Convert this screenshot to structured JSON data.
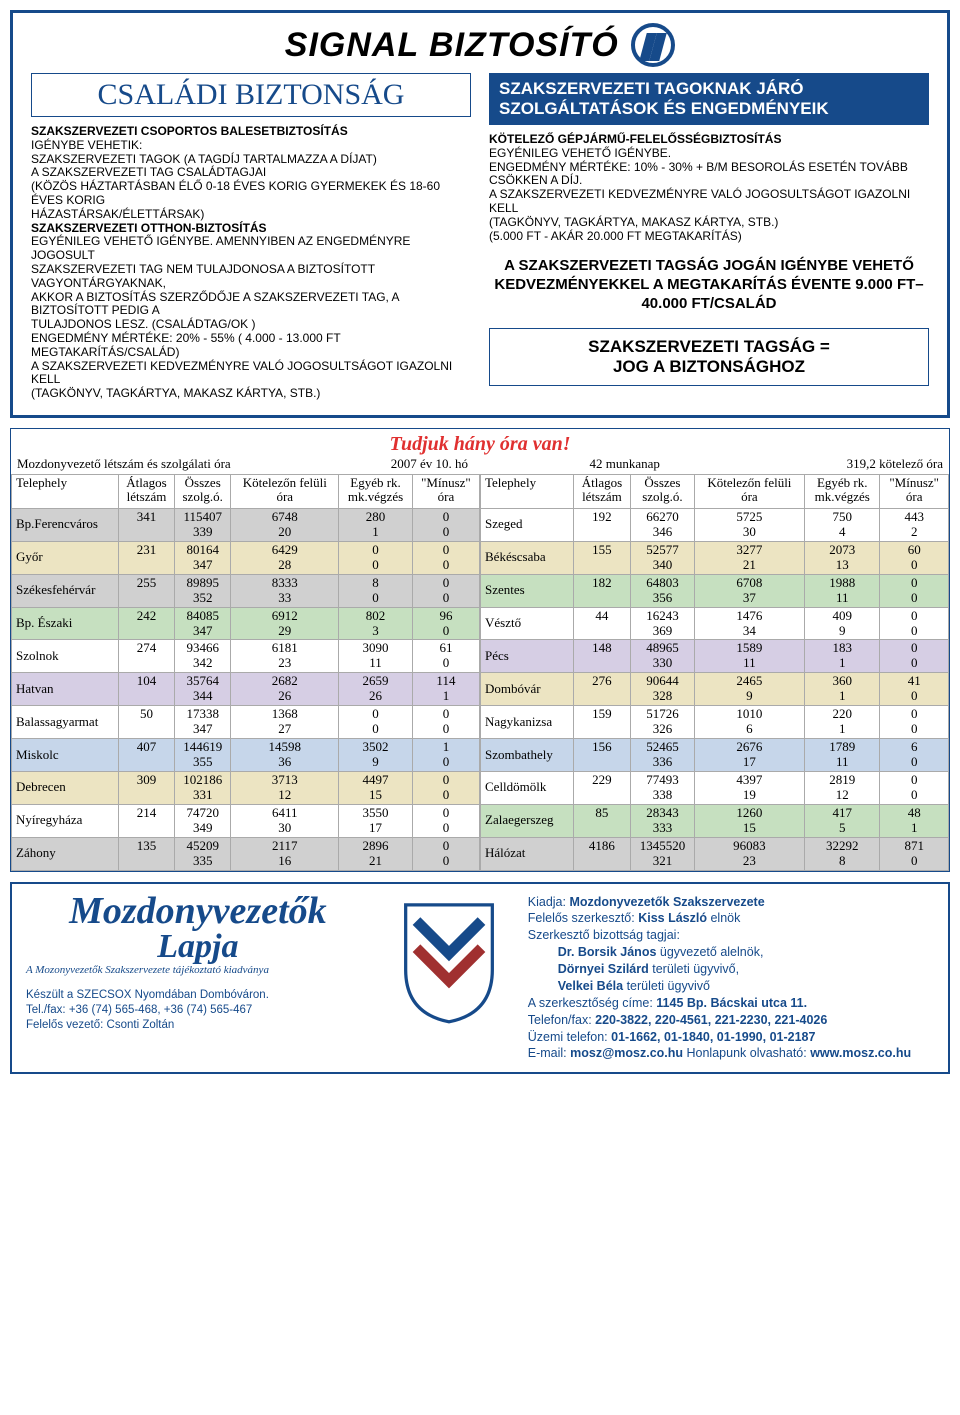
{
  "brand": "SIGNAL BIZTOSÍTÓ",
  "left_title": "CSALÁDI BIZTONSÁG",
  "right_title": "SZAKSZERVEZETI TAGOKNAK JÁRÓ SZOLGÁLTATÁSOK ÉS ENGEDMÉNYEIK",
  "left_block": {
    "h1": "SZAKSZERVEZETI CSOPORTOS BALESETBIZTOSÍTÁS",
    "l1": "IGÉNYBE VEHETIK:",
    "l2": "SZAKSZERVEZETI TAGOK (A TAGDÍJ TARTALMAZZA A DÍJAT)",
    "l3": "A SZAKSZERVEZETI TAG CSALÁDTAGJAI",
    "l4": "(KÖZÖS HÁZTARTÁSBAN ÉLŐ 0-18 ÉVES KORIG GYERMEKEK ÉS 18-60 ÉVES KORIG",
    "l5": "HÁZASTÁRSAK/ÉLETTÁRSAK)",
    "h2": "SZAKSZERVEZETI OTTHON-BIZTOSÍTÁS",
    "l6": "EGYÉNILEG VEHETŐ IGÉNYBE. AMENNYIBEN AZ ENGEDMÉNYRE JOGOSULT",
    "l7": "SZAKSZERVEZETI TAG NEM TULAJDONOSA A BIZTOSÍTOTT VAGYONTÁRGYAKNAK,",
    "l8": "AKKOR A BIZTOSÍTÁS SZERZŐDŐJE A SZAKSZERVEZETI TAG, A BIZTOSÍTOTT PEDIG A",
    "l9": "TULAJDONOS LESZ. (CSALÁDTAG/OK )",
    "l10": "ENGEDMÉNY MÉRTÉKE: 20% - 55% ( 4.000 - 13.000 FT MEGTAKARÍTÁS/CSALÁD)",
    "l11": "A SZAKSZERVEZETI KEDVEZMÉNYRE VALÓ JOGOSULTSÁGOT IGAZOLNI KELL",
    "l12": "(TAGKÖNYV, TAGKÁRTYA, MAKASZ KÁRTYA, STB.)"
  },
  "right_block": {
    "h1": "KÖTELEZŐ GÉPJÁRMŰ-FELELŐSSÉGBIZTOSÍTÁS",
    "l1": "EGYÉNILEG VEHETŐ IGÉNYBE.",
    "l2": "ENGEDMÉNY MÉRTÉKE: 10% - 30% + B/M BESOROLÁS ESETÉN TOVÁBB CSÖKKEN A DÍJ.",
    "l3": "A SZAKSZERVEZETI KEDVEZMÉNYRE VALÓ JOGOSULTSÁGOT IGAZOLNI KELL",
    "l4": "(TAGKÖNYV, TAGKÁRTYA, MAKASZ KÁRTYA, STB.)",
    "l5": "(5.000 FT - AKÁR 20.000 FT MEGTAKARÍTÁS)",
    "hl1": "A SZAKSZERVEZETI TAGSÁG JOGÁN IGÉNYBE VEHETŐ KEDVEZMÉNYEKKEL A MEGTAKARÍTÁS ÉVENTE 9.000 FT–40.000 FT/CSALÁD",
    "box1": "SZAKSZERVEZETI TAGSÁG =",
    "box2": "JOG A BIZTONSÁGHOZ"
  },
  "table": {
    "title": "Tudjuk hány óra van!",
    "meta1": "Mozdonyvezető létszám és szolgálati óra",
    "meta2": "2007 év 10. hó",
    "meta3": "42 munkanap",
    "meta4": "319,2 kötelező óra",
    "headers": [
      "Telephely",
      "Átlagos létszám",
      "Összes szolg.ó.",
      "Kötelezőn felüli óra",
      "Egyéb rk. mk.végzés",
      "\"Mínusz\" óra"
    ],
    "colors": {
      "grey": "#d0d0d0",
      "cream": "#ece4c2",
      "green": "#c6e0c0",
      "lilac": "#d6cee4",
      "blue": "#c6d6ea",
      "plain": "#ffffff"
    },
    "left_rows": [
      {
        "c": "grey",
        "site": "Bp.Ferencváros",
        "v": [
          [
            "341",
            ""
          ],
          [
            "115407",
            "339"
          ],
          [
            "6748",
            "20"
          ],
          [
            "280",
            "1"
          ],
          [
            "0",
            "0"
          ]
        ]
      },
      {
        "c": "cream",
        "site": "Győr",
        "v": [
          [
            "231",
            ""
          ],
          [
            "80164",
            "347"
          ],
          [
            "6429",
            "28"
          ],
          [
            "0",
            "0"
          ],
          [
            "0",
            "0"
          ]
        ]
      },
      {
        "c": "grey",
        "site": "Székesfehérvár",
        "v": [
          [
            "255",
            ""
          ],
          [
            "89895",
            "352"
          ],
          [
            "8333",
            "33"
          ],
          [
            "8",
            "0"
          ],
          [
            "0",
            "0"
          ]
        ]
      },
      {
        "c": "green",
        "site": "Bp. Északi",
        "v": [
          [
            "242",
            ""
          ],
          [
            "84085",
            "347"
          ],
          [
            "6912",
            "29"
          ],
          [
            "802",
            "3"
          ],
          [
            "96",
            "0"
          ]
        ]
      },
      {
        "c": "plain",
        "site": "Szolnok",
        "v": [
          [
            "274",
            ""
          ],
          [
            "93466",
            "342"
          ],
          [
            "6181",
            "23"
          ],
          [
            "3090",
            "11"
          ],
          [
            "61",
            "0"
          ]
        ]
      },
      {
        "c": "lilac",
        "site": "Hatvan",
        "v": [
          [
            "104",
            ""
          ],
          [
            "35764",
            "344"
          ],
          [
            "2682",
            "26"
          ],
          [
            "2659",
            "26"
          ],
          [
            "114",
            "1"
          ]
        ]
      },
      {
        "c": "plain",
        "site": "Balassagyarmat",
        "v": [
          [
            "50",
            ""
          ],
          [
            "17338",
            "347"
          ],
          [
            "1368",
            "27"
          ],
          [
            "0",
            "0"
          ],
          [
            "0",
            "0"
          ]
        ]
      },
      {
        "c": "blue",
        "site": "Miskolc",
        "v": [
          [
            "407",
            ""
          ],
          [
            "144619",
            "355"
          ],
          [
            "14598",
            "36"
          ],
          [
            "3502",
            "9"
          ],
          [
            "1",
            "0"
          ]
        ]
      },
      {
        "c": "cream",
        "site": "Debrecen",
        "v": [
          [
            "309",
            ""
          ],
          [
            "102186",
            "331"
          ],
          [
            "3713",
            "12"
          ],
          [
            "4497",
            "15"
          ],
          [
            "0",
            "0"
          ]
        ]
      },
      {
        "c": "plain",
        "site": "Nyíregyháza",
        "v": [
          [
            "214",
            ""
          ],
          [
            "74720",
            "349"
          ],
          [
            "6411",
            "30"
          ],
          [
            "3550",
            "17"
          ],
          [
            "0",
            "0"
          ]
        ]
      },
      {
        "c": "grey",
        "site": "Záhony",
        "v": [
          [
            "135",
            ""
          ],
          [
            "45209",
            "335"
          ],
          [
            "2117",
            "16"
          ],
          [
            "2896",
            "21"
          ],
          [
            "0",
            "0"
          ]
        ]
      }
    ],
    "right_rows": [
      {
        "c": "plain",
        "site": "Szeged",
        "v": [
          [
            "192",
            ""
          ],
          [
            "66270",
            "346"
          ],
          [
            "5725",
            "30"
          ],
          [
            "750",
            "4"
          ],
          [
            "443",
            "2"
          ]
        ]
      },
      {
        "c": "cream",
        "site": "Békéscsaba",
        "v": [
          [
            "155",
            ""
          ],
          [
            "52577",
            "340"
          ],
          [
            "3277",
            "21"
          ],
          [
            "2073",
            "13"
          ],
          [
            "60",
            "0"
          ]
        ]
      },
      {
        "c": "green",
        "site": "Szentes",
        "v": [
          [
            "182",
            ""
          ],
          [
            "64803",
            "356"
          ],
          [
            "6708",
            "37"
          ],
          [
            "1988",
            "11"
          ],
          [
            "0",
            "0"
          ]
        ]
      },
      {
        "c": "plain",
        "site": "Vésztő",
        "v": [
          [
            "44",
            ""
          ],
          [
            "16243",
            "369"
          ],
          [
            "1476",
            "34"
          ],
          [
            "409",
            "9"
          ],
          [
            "0",
            "0"
          ]
        ]
      },
      {
        "c": "lilac",
        "site": "Pécs",
        "v": [
          [
            "148",
            ""
          ],
          [
            "48965",
            "330"
          ],
          [
            "1589",
            "11"
          ],
          [
            "183",
            "1"
          ],
          [
            "0",
            "0"
          ]
        ]
      },
      {
        "c": "cream",
        "site": "Dombóvár",
        "v": [
          [
            "276",
            ""
          ],
          [
            "90644",
            "328"
          ],
          [
            "2465",
            "9"
          ],
          [
            "360",
            "1"
          ],
          [
            "41",
            "0"
          ]
        ]
      },
      {
        "c": "plain",
        "site": "Nagykanizsa",
        "v": [
          [
            "159",
            ""
          ],
          [
            "51726",
            "326"
          ],
          [
            "1010",
            "6"
          ],
          [
            "220",
            "1"
          ],
          [
            "0",
            "0"
          ]
        ]
      },
      {
        "c": "blue",
        "site": "Szombathely",
        "v": [
          [
            "156",
            ""
          ],
          [
            "52465",
            "336"
          ],
          [
            "2676",
            "17"
          ],
          [
            "1789",
            "11"
          ],
          [
            "6",
            "0"
          ]
        ]
      },
      {
        "c": "plain",
        "site": "Celldömölk",
        "v": [
          [
            "229",
            ""
          ],
          [
            "77493",
            "338"
          ],
          [
            "4397",
            "19"
          ],
          [
            "2819",
            "12"
          ],
          [
            "0",
            "0"
          ]
        ]
      },
      {
        "c": "green",
        "site": "Zalaegerszeg",
        "v": [
          [
            "85",
            ""
          ],
          [
            "28343",
            "333"
          ],
          [
            "1260",
            "15"
          ],
          [
            "417",
            "5"
          ],
          [
            "48",
            "1"
          ]
        ]
      },
      {
        "c": "grey",
        "site": "Hálózat",
        "v": [
          [
            "4186",
            ""
          ],
          [
            "1345520",
            "321"
          ],
          [
            "96083",
            "23"
          ],
          [
            "32292",
            "8"
          ],
          [
            "871",
            "0"
          ]
        ]
      }
    ]
  },
  "footer": {
    "pub_title1": "Mozdonyvezetők",
    "pub_title2": "Lapja",
    "pub_small": "A Mozonyvezetők Szakszervezete tájékoztató kiadványa",
    "made": "Készült a SZECSOX Nyomdában Dombóváron.",
    "tel": "Tel./fax: +36 (74) 565-468, +36 (74) 565-467",
    "resp": "Felelős vezető: Csonti Zoltán",
    "r1": "Kiadja: ",
    "r1b": "Mozdonyvezetők Szakszervezete",
    "r2": "Felelős szerkesztő: ",
    "r2b": "Kiss László ",
    "r2c": "elnök",
    "r3": "Szerkesztő bizottság tagjai:",
    "r4": "Dr. Borsik János ",
    "r4b": "ügyvezető alelnök,",
    "r5": "Dörnyei Szilárd ",
    "r5b": "területi ügyvivő,",
    "r6": "Velkei Béla ",
    "r6b": "területi ügyvivő",
    "r7": "A szerkesztőség címe: ",
    "r7b": "1145 Bp. Bácskai utca 11.",
    "r8": "Telefon/fax: ",
    "r8b": "220-3822, 220-4561, 221-2230, 221-4026",
    "r9": "Üzemi telefon: ",
    "r9b": "01-1662, 01-1840, 01-1990, 01-2187",
    "r10a": "E-mail: ",
    "r10b": "mosz@mosz.co.hu",
    "r10c": "   Honlapunk olvasható: ",
    "r10d": "www.mosz.co.hu"
  }
}
